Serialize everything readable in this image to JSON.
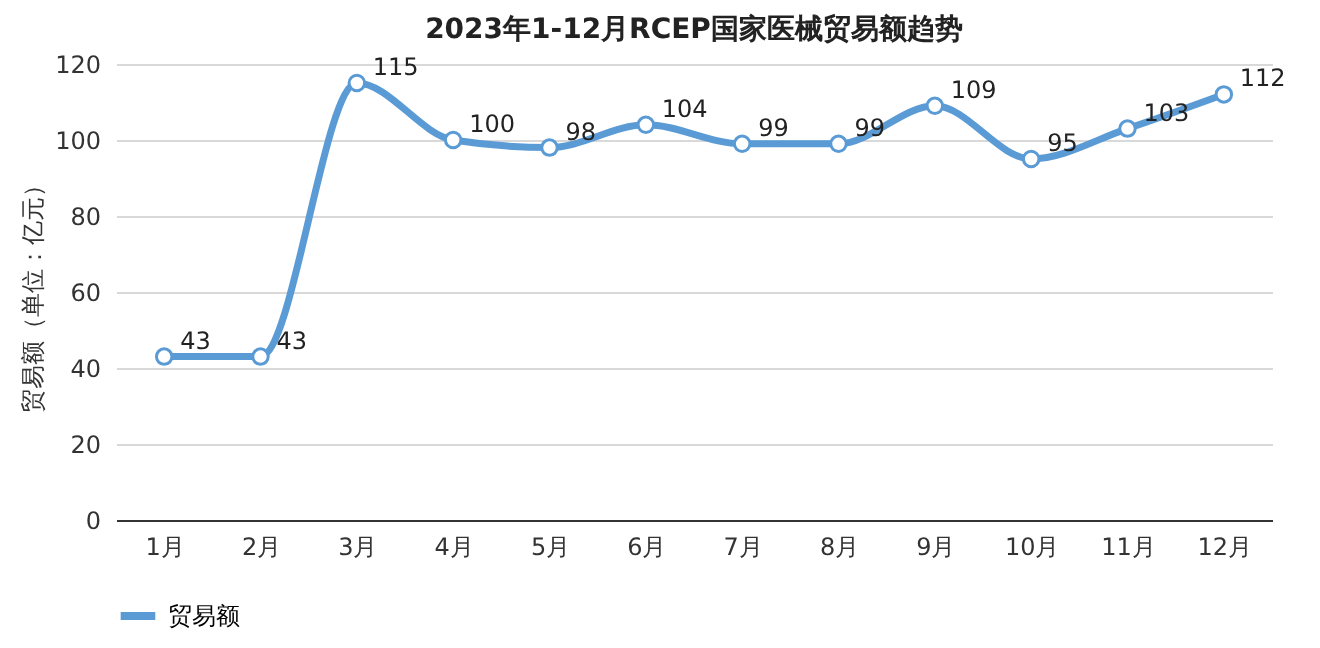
{
  "chart_data": {
    "type": "line",
    "title": "2023年1-12月RCEP国家医械贸易额趋势",
    "ylabel": "贸易额（单位：亿元）",
    "categories": [
      "1月",
      "2月",
      "3月",
      "4月",
      "5月",
      "6月",
      "7月",
      "8月",
      "9月",
      "10月",
      "11月",
      "12月"
    ],
    "series": [
      {
        "name": "贸易额",
        "color": "#5b9bd5",
        "values": [
          43,
          43,
          115,
          100,
          98,
          104,
          99,
          99,
          109,
          95,
          103,
          112
        ]
      }
    ],
    "ylim": [
      0,
      120
    ],
    "yticks": [
      0,
      20,
      40,
      60,
      80,
      100,
      120
    ],
    "grid": "y",
    "legend": "bottom",
    "marker": "circle",
    "line_style": "solid",
    "data_labels": true
  }
}
